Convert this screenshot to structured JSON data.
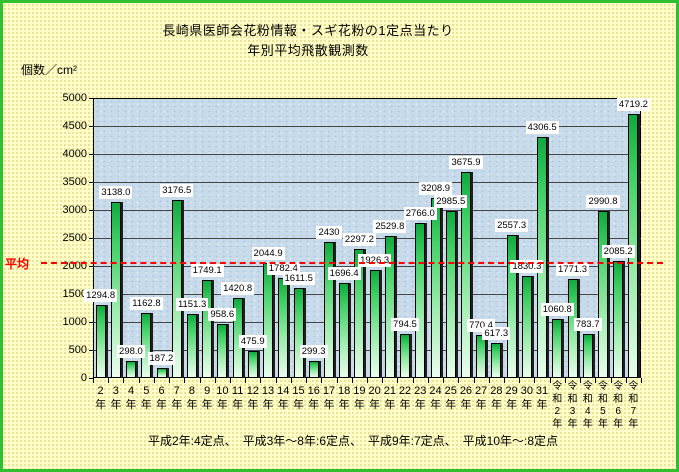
{
  "frame": {
    "border_color": "#2fbf2f",
    "background_color": "#ffffc8",
    "plot_background_color": "#c8dbeb"
  },
  "title": {
    "line1": "長崎県医師会花粉情報・スギ花粉の1定点当たり",
    "line2": "年別平均飛散観測数"
  },
  "y_axis": {
    "unit_label": "個数／cm²",
    "min": 0,
    "max": 5000,
    "step": 500
  },
  "mean_line": {
    "label": "平均",
    "value": 2050,
    "color": "#ff0000",
    "style": "dashed"
  },
  "footnote": "平成2年:4定点、　平成3年～8年:6定点、　平成9年:7定点、　平成10年～:8定点",
  "chart_data": {
    "type": "bar",
    "title": "長崎県医師会花粉情報・スギ花粉の1定点当たり 年別平均飛散観測数",
    "ylabel": "個数／cm²",
    "ylim": [
      0,
      5000
    ],
    "grid": true,
    "bar_colors": {
      "top": "#0fa93e",
      "bottom": "#eafdee",
      "outline": "#000000",
      "shadow": "#1f1f1f"
    },
    "categories": [
      "2年",
      "3年",
      "4年",
      "5年",
      "6年",
      "7年",
      "8年",
      "9年",
      "10年",
      "11年",
      "12年",
      "13年",
      "14年",
      "15年",
      "16年",
      "17年",
      "18年",
      "19年",
      "20年",
      "21年",
      "22年",
      "23年",
      "24年",
      "25年",
      "26年",
      "27年",
      "28年",
      "29年",
      "30年",
      "31年",
      "令和2年",
      "令和3年",
      "令和4年",
      "令和5年",
      "令和6年",
      "令和7年"
    ],
    "values": [
      1294.8,
      3138.0,
      298.0,
      1162.8,
      187.2,
      3176.5,
      1151.3,
      1749.1,
      958.6,
      1420.8,
      475.9,
      2044.9,
      1782.4,
      1611.5,
      299.3,
      2430,
      1696.4,
      2297.2,
      1926.3,
      2529.8,
      794.5,
      2766.0,
      3208.9,
      2985.5,
      3675.9,
      770.4,
      617.3,
      2557.3,
      1830.3,
      4306.5,
      1060.8,
      1771.3,
      783.7,
      2990.8,
      2085.2,
      4719.2
    ],
    "value_labels": [
      "1294.8",
      "3138.0",
      "298.0",
      "1162.8",
      "187.2",
      "3176.5",
      "1151.3",
      "1749.1",
      "958.6",
      "1420.8",
      "475.9",
      "2044.9",
      "1782.4",
      "1611.5",
      "299.3",
      "2430",
      "1696.4",
      "2297.2",
      "1926.3",
      "2529.8",
      "794.5",
      "2766.0",
      "3208.9",
      "2985.5",
      "3675.9",
      "770.4",
      "617.3",
      "2557.3",
      "1830.3",
      "4306.5",
      "1060.8",
      "1771.3",
      "783.7",
      "2990.8",
      "2085.2",
      "4719.2"
    ]
  }
}
